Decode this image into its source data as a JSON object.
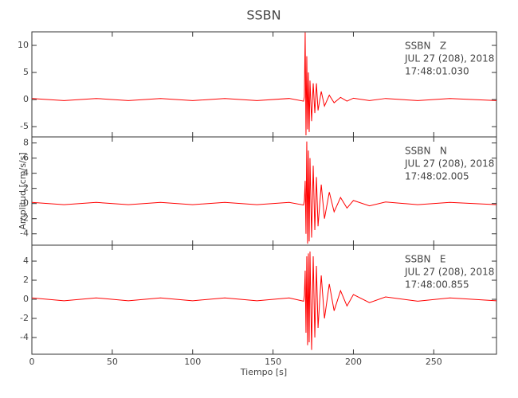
{
  "figure": {
    "title": "SSBN",
    "xlabel": "Tiempo [s]",
    "ylabel": "Amplitud [cm/s/s]"
  },
  "chart_data": [
    {
      "type": "line",
      "annotations": [
        "SSBN   Z",
        "JUL 27 (208), 2018",
        "17:48:01.030"
      ],
      "x": [
        0,
        20,
        40,
        60,
        80,
        100,
        120,
        140,
        160,
        169,
        169.5,
        170,
        170.5,
        171,
        171.5,
        172,
        172.5,
        173,
        174,
        175,
        176,
        177,
        178,
        180,
        182,
        185,
        188,
        192,
        196,
        200,
        210,
        220,
        240,
        260,
        289
      ],
      "series": [
        {
          "name": "Z",
          "color": "#ff0000",
          "values": [
            0.2,
            -0.2,
            0.2,
            -0.2,
            0.2,
            -0.2,
            0.2,
            -0.2,
            0.2,
            -0.3,
            0.5,
            12.4,
            -6.6,
            8,
            -5.5,
            5,
            -6,
            3.5,
            -4,
            3,
            -2.5,
            3,
            -2,
            1.5,
            -1.2,
            0.8,
            -0.6,
            0.4,
            -0.3,
            0.25,
            -0.2,
            0.2,
            -0.2,
            0.2,
            -0.2
          ]
        }
      ],
      "xlim": [
        0,
        289
      ],
      "xticks": [
        0,
        50,
        100,
        150,
        200,
        250
      ],
      "ylim": [
        -6.9,
        12.5
      ],
      "yticks": [
        -5,
        0,
        5,
        10
      ]
    },
    {
      "type": "line",
      "annotations": [
        "SSBN   N",
        "JUL 27 (208), 2018",
        "17:48:02.005"
      ],
      "x": [
        0,
        20,
        40,
        60,
        80,
        100,
        120,
        140,
        160,
        169,
        169.5,
        170,
        170.5,
        171,
        171.5,
        172,
        172.5,
        173,
        174,
        175,
        176,
        177,
        178,
        180,
        182,
        185,
        188,
        192,
        196,
        200,
        210,
        220,
        240,
        260,
        289
      ],
      "series": [
        {
          "name": "N",
          "color": "#ff0000",
          "values": [
            0.15,
            -0.15,
            0.15,
            -0.15,
            0.15,
            -0.15,
            0.15,
            -0.15,
            0.15,
            -0.2,
            0.4,
            3,
            -4,
            8.2,
            -5.3,
            7,
            -5,
            6,
            -4.5,
            5,
            -3.5,
            3.5,
            -3,
            2.5,
            -2,
            1.5,
            -1.1,
            0.8,
            -0.6,
            0.4,
            -0.3,
            0.2,
            -0.15,
            0.15,
            -0.15
          ]
        }
      ],
      "xlim": [
        0,
        289
      ],
      "xticks": [
        0,
        50,
        100,
        150,
        200,
        250
      ],
      "ylim": [
        -5.5,
        8.8
      ],
      "yticks": [
        -4,
        -2,
        0,
        2,
        4,
        6,
        8
      ]
    },
    {
      "type": "line",
      "annotations": [
        "SSBN   E",
        "JUL 27 (208), 2018",
        "17:48:00.855"
      ],
      "x": [
        0,
        20,
        40,
        60,
        80,
        100,
        120,
        140,
        160,
        169,
        169.5,
        170,
        170.5,
        171,
        171.5,
        172,
        172.5,
        173,
        174,
        175,
        176,
        177,
        178,
        180,
        182,
        185,
        188,
        192,
        196,
        200,
        210,
        220,
        240,
        260,
        289
      ],
      "series": [
        {
          "name": "E",
          "color": "#ff0000",
          "values": [
            0.15,
            -0.15,
            0.15,
            -0.15,
            0.15,
            -0.15,
            0.15,
            -0.15,
            0.15,
            -0.2,
            0.4,
            3,
            -3.5,
            4.5,
            -4.8,
            4.8,
            -4.5,
            5,
            -5.3,
            4.5,
            -4,
            3.5,
            -3,
            2.5,
            -2,
            1.6,
            -1.2,
            0.9,
            -0.7,
            0.5,
            -0.35,
            0.25,
            -0.2,
            0.15,
            -0.15
          ]
        }
      ],
      "xlim": [
        0,
        289
      ],
      "xticks": [
        0,
        50,
        100,
        150,
        200,
        250
      ],
      "ylim": [
        -5.75,
        5.67
      ],
      "yticks": [
        -4,
        -2,
        0,
        2,
        4
      ]
    }
  ]
}
